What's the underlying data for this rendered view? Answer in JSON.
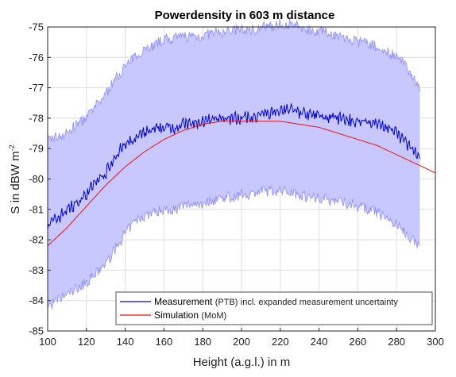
{
  "chart_data": {
    "type": "line",
    "title": "Powerdensity in 603 m distance",
    "xlabel": "Height (a.g.l.) in m",
    "ylabel": {
      "text": "S in dBW m",
      "superscript": "-2"
    },
    "xlim": [
      100,
      300
    ],
    "ylim": [
      -85,
      -75
    ],
    "xticks": [
      "100",
      "120",
      "140",
      "160",
      "180",
      "200",
      "220",
      "240",
      "260",
      "280",
      "300"
    ],
    "yticks": [
      "-75",
      "-76",
      "-77",
      "-78",
      "-79",
      "-80",
      "-81",
      "-82",
      "-83",
      "-84",
      "-85"
    ],
    "grid": true,
    "legend_position": "bottom-right",
    "series": [
      {
        "name": "Measurement",
        "name_suffix": "(PTB)",
        "name_tail": "incl. expanded measurement uncertainty",
        "color": "#0000cc",
        "x": [
          100,
          105,
          110,
          115,
          120,
          125,
          130,
          135,
          140,
          145,
          150,
          155,
          160,
          165,
          170,
          175,
          180,
          185,
          190,
          195,
          200,
          205,
          210,
          215,
          220,
          225,
          230,
          235,
          240,
          245,
          250,
          255,
          260,
          265,
          270,
          275,
          280,
          285,
          290,
          292
        ],
        "y": [
          -81.5,
          -81.3,
          -81.0,
          -80.8,
          -80.5,
          -80.1,
          -79.8,
          -79.2,
          -78.9,
          -78.7,
          -78.5,
          -78.4,
          -78.3,
          -78.3,
          -78.2,
          -78.2,
          -78.1,
          -78.1,
          -78.0,
          -78.0,
          -78.0,
          -78.0,
          -77.9,
          -77.8,
          -77.7,
          -77.7,
          -77.8,
          -77.9,
          -77.9,
          -78.0,
          -78.0,
          -78.1,
          -78.1,
          -78.1,
          -78.2,
          -78.3,
          -78.5,
          -78.8,
          -79.2,
          -79.4
        ],
        "upper": [
          -78.7,
          -78.6,
          -78.5,
          -78.2,
          -78.0,
          -77.6,
          -77.2,
          -76.7,
          -76.3,
          -76.0,
          -75.7,
          -75.6,
          -75.4,
          -75.4,
          -75.3,
          -75.3,
          -75.3,
          -75.2,
          -75.2,
          -75.1,
          -75.1,
          -75.1,
          -75.0,
          -75.0,
          -74.9,
          -74.9,
          -75.0,
          -75.1,
          -75.1,
          -75.2,
          -75.3,
          -75.4,
          -75.5,
          -75.5,
          -75.7,
          -75.8,
          -76.0,
          -76.3,
          -76.8,
          -77.0
        ],
        "lower": [
          -84.2,
          -84.0,
          -83.8,
          -83.6,
          -83.4,
          -83.1,
          -82.8,
          -82.3,
          -81.8,
          -81.4,
          -81.2,
          -81.1,
          -81.0,
          -81.0,
          -80.9,
          -80.8,
          -80.8,
          -80.7,
          -80.6,
          -80.6,
          -80.5,
          -80.5,
          -80.4,
          -80.4,
          -80.4,
          -80.4,
          -80.5,
          -80.6,
          -80.6,
          -80.7,
          -80.7,
          -80.8,
          -80.9,
          -81.0,
          -81.1,
          -81.3,
          -81.5,
          -81.8,
          -82.1,
          -82.2
        ],
        "band_color": "#c8c8ff",
        "band_edge_color": "#8c8cff"
      },
      {
        "name": "Simulation",
        "name_suffix": "(MoM)",
        "color": "#ee1111",
        "x": [
          100,
          110,
          120,
          130,
          140,
          150,
          160,
          170,
          180,
          190,
          200,
          210,
          220,
          230,
          240,
          250,
          260,
          270,
          280,
          290,
          300
        ],
        "y": [
          -82.2,
          -81.6,
          -80.9,
          -80.2,
          -79.6,
          -79.1,
          -78.7,
          -78.4,
          -78.2,
          -78.1,
          -78.1,
          -78.1,
          -78.1,
          -78.2,
          -78.3,
          -78.5,
          -78.7,
          -78.9,
          -79.2,
          -79.5,
          -79.8
        ]
      }
    ]
  }
}
